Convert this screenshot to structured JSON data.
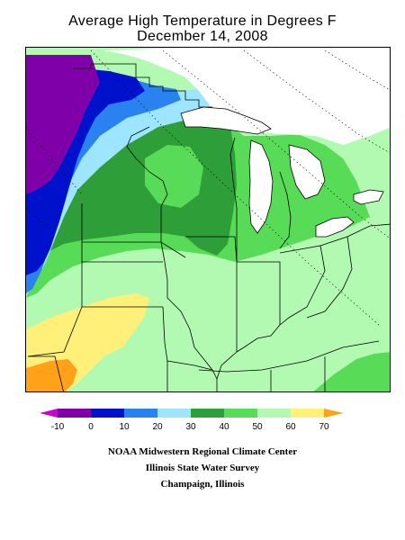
{
  "title": {
    "line1": "Average High Temperature in Degrees F",
    "line2": "December 14, 2008"
  },
  "legend": {
    "bins": [
      {
        "label": "-10",
        "color": "#cc00cc"
      },
      {
        "label": "0",
        "color": "#7f00a8"
      },
      {
        "label": "10",
        "color": "#0011cc"
      },
      {
        "label": "20",
        "color": "#2a82f0"
      },
      {
        "label": "30",
        "color": "#9ee6ff"
      },
      {
        "label": "40",
        "color": "#2e9e38"
      },
      {
        "label": "50",
        "color": "#58dc58"
      },
      {
        "label": "60",
        "color": "#b2fab2"
      },
      {
        "label": "70",
        "color": "#fff07a"
      }
    ],
    "high_color": "#ffa21a"
  },
  "credits": {
    "line1": "NOAA Midwestern Regional Climate Center",
    "line2": "Illinois State Water Survey",
    "line3": "Champaign, Illinois"
  }
}
